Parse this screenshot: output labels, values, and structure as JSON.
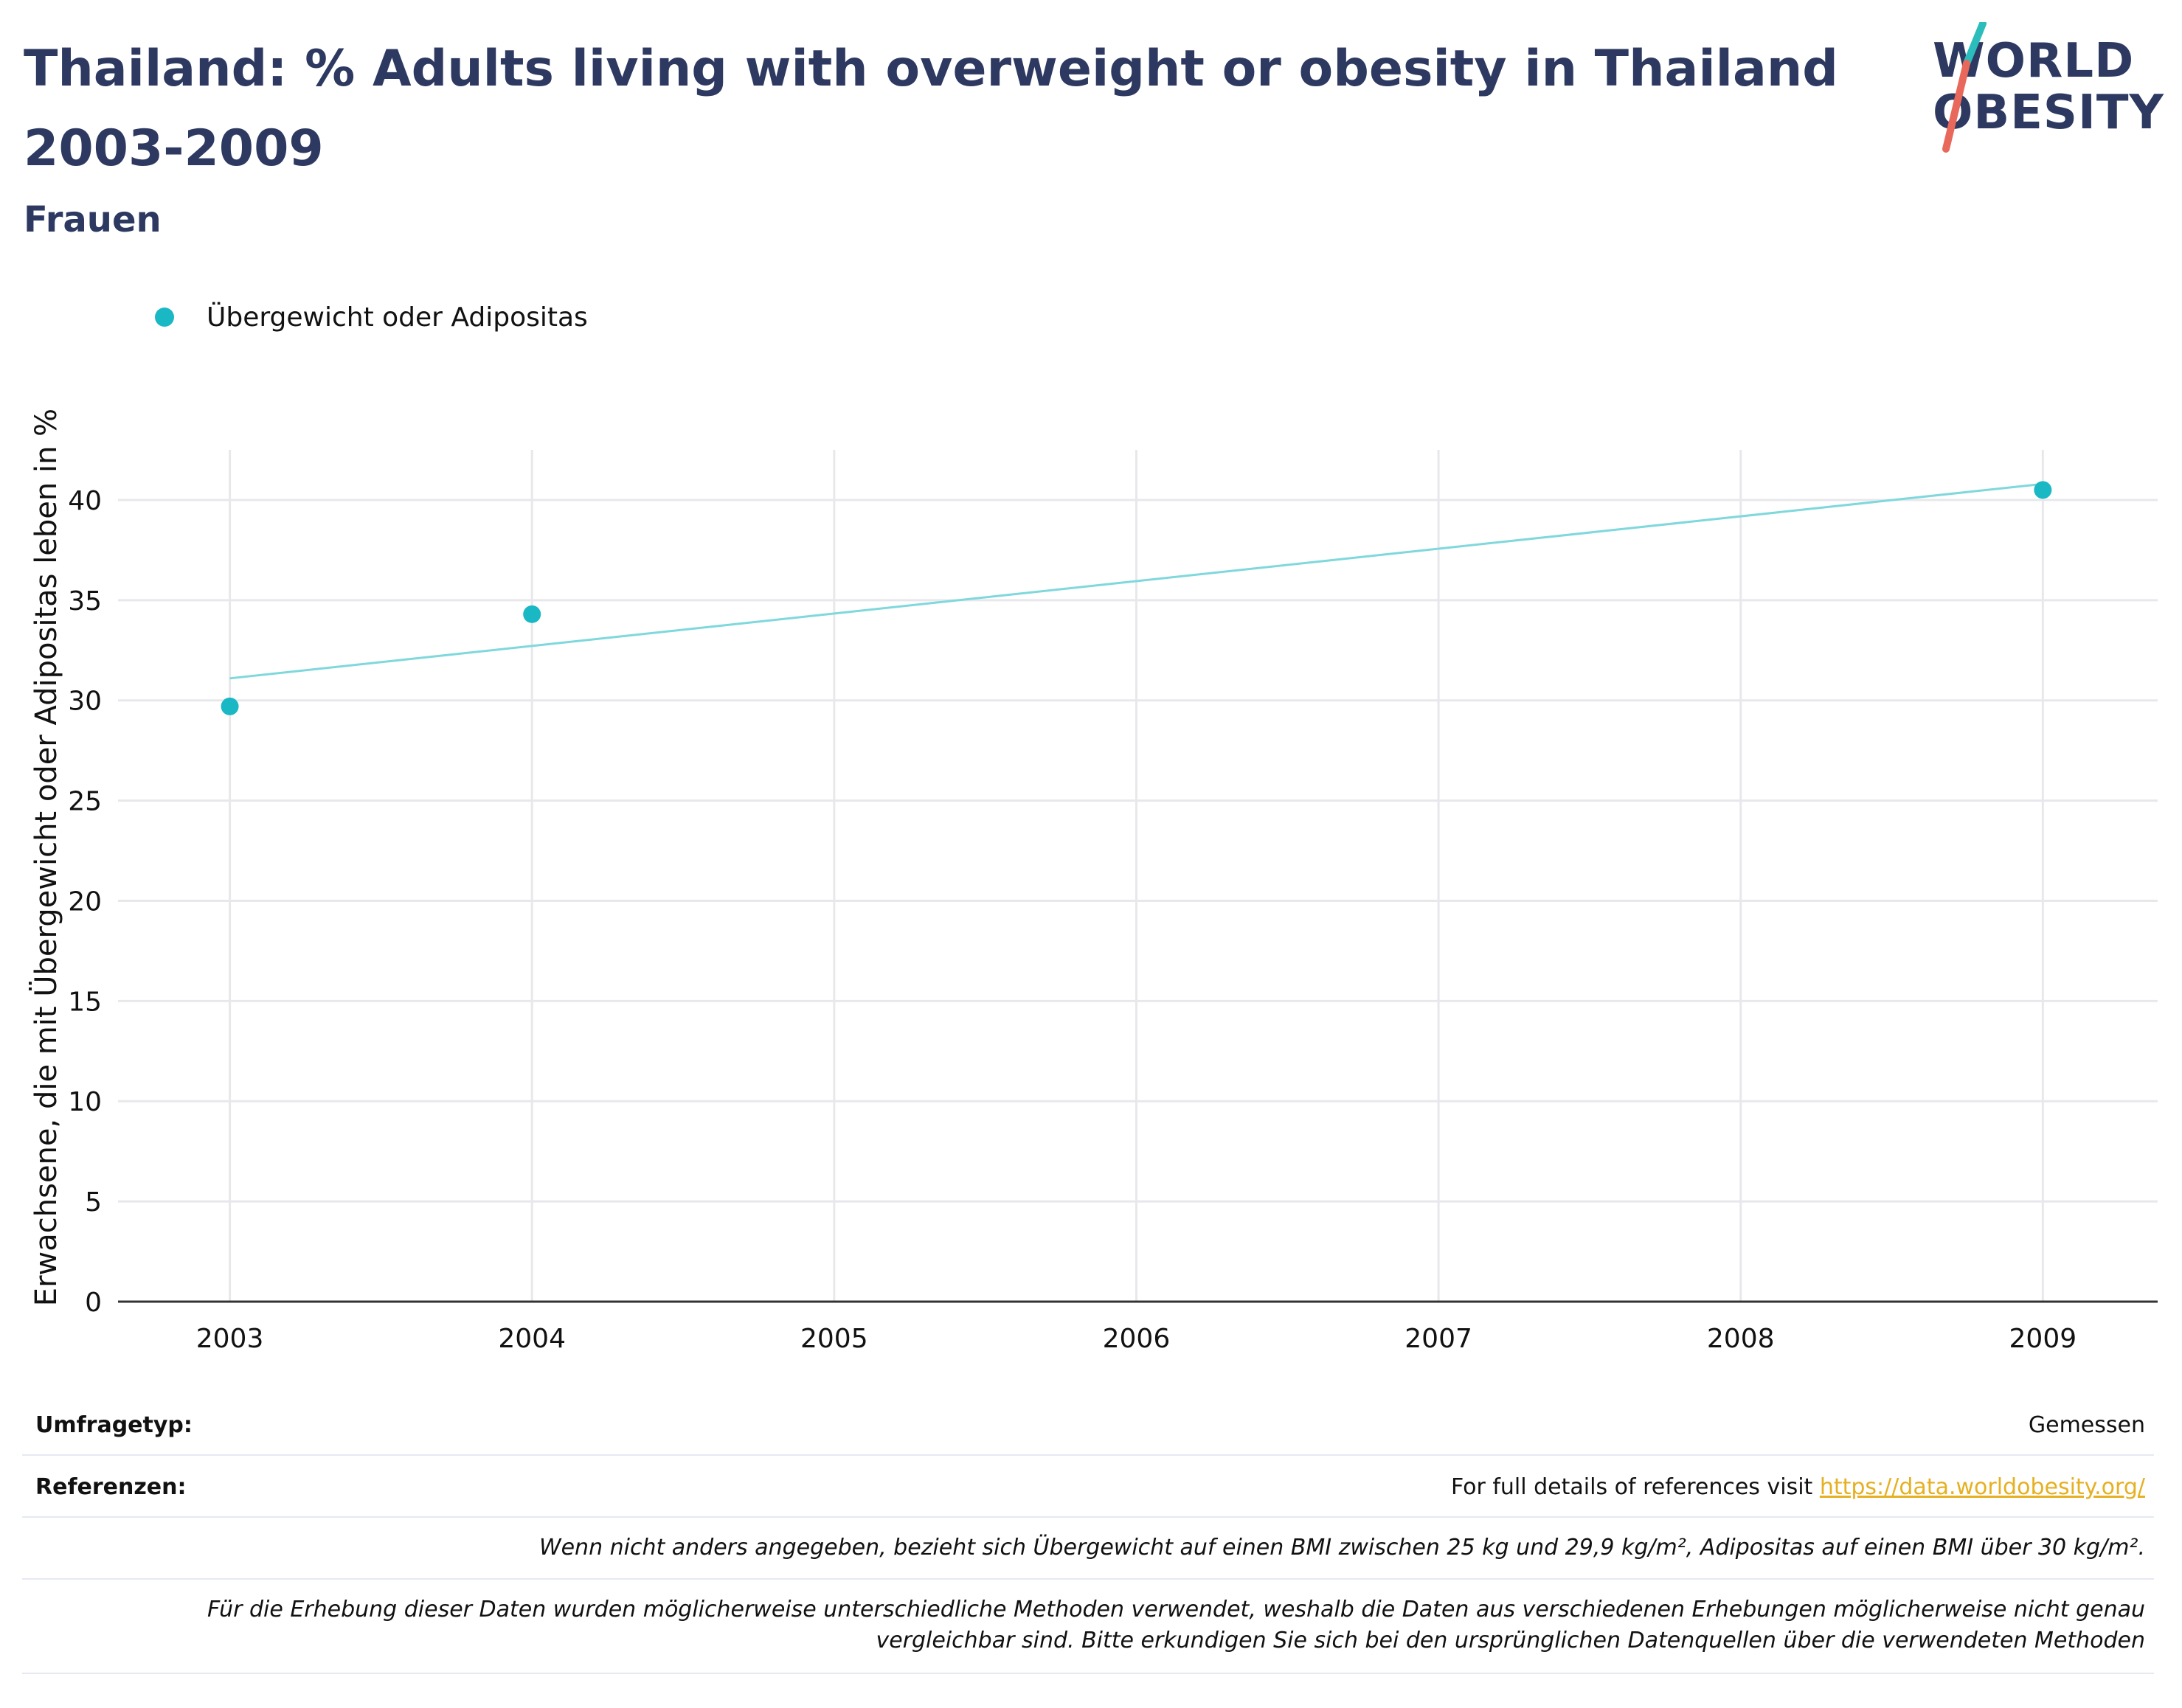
{
  "header": {
    "title": "Thailand: % Adults living with overweight or obesity in Thailand 2003-2009",
    "subtitle": "Frauen"
  },
  "logo": {
    "line1": "WORLD",
    "line2": "OBESITY",
    "accent_teal": "#2bbdbb",
    "accent_coral": "#e8695b"
  },
  "legend": {
    "label": "Übergewicht oder Adipositas",
    "color": "#1ab8c4"
  },
  "chart_data": {
    "type": "scatter",
    "x": [
      2003,
      2004,
      2009
    ],
    "series": [
      {
        "name": "Übergewicht oder Adipositas",
        "values": [
          29.7,
          34.3,
          40.5
        ],
        "color": "#1ab8c4"
      }
    ],
    "trendline": {
      "x": [
        2003,
        2009
      ],
      "y": [
        31.1,
        40.8
      ],
      "color": "#7fd8dc"
    },
    "ylabel": "Erwachsene, die mit Übergewicht oder Adipositas leben in %",
    "xlabel": "",
    "xticks": [
      2003,
      2004,
      2005,
      2006,
      2007,
      2008,
      2009
    ],
    "yticks": [
      0,
      5,
      10,
      15,
      20,
      25,
      30,
      35,
      40
    ],
    "xlim": [
      2002.63,
      2009.38
    ],
    "ylim": [
      0,
      42.5
    ],
    "grid": true
  },
  "footer": {
    "survey_label": "Umfragetyp:",
    "survey_value": "Gemessen",
    "references_label": "Referenzen:",
    "references_text": "For full details of references visit ",
    "references_link": "https://data.worldobesity.org/",
    "note1": "Wenn nicht anders angegeben, bezieht sich Übergewicht auf einen BMI zwischen 25 kg und 29,9 kg/m², Adipositas auf einen BMI über 30 kg/m².",
    "note2": "Für die Erhebung dieser Daten wurden möglicherweise unterschiedliche Methoden verwendet, weshalb die Daten aus verschiedenen Erhebungen möglicherweise nicht genau vergleichbar sind. Bitte erkundigen Sie sich bei den ursprünglichen Datenquellen über die verwendeten Methoden"
  }
}
